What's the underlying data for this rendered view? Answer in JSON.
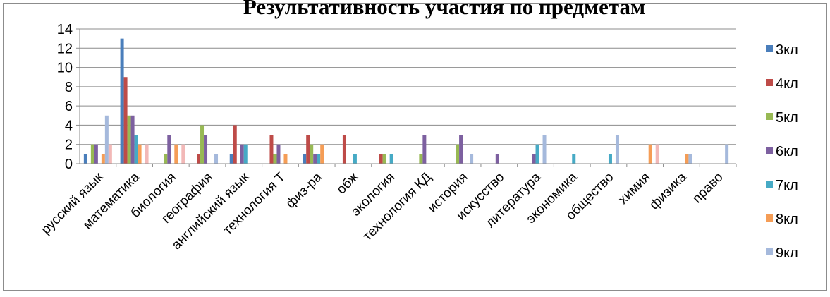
{
  "chart_data": {
    "type": "bar",
    "title": "Результативность участия по предметам",
    "xlabel": "",
    "ylabel": "",
    "ylim": [
      0,
      14
    ],
    "yticks": [
      0,
      2,
      4,
      6,
      8,
      10,
      12,
      14
    ],
    "grid": true,
    "legend_position": "right",
    "categories": [
      "русский язык",
      "математика",
      "биология",
      "география",
      "английский язык",
      "технология Т",
      "физ-ра",
      "обж",
      "экология",
      "технология КД",
      "история",
      "искусство",
      "литература",
      "экономика",
      "общество",
      "химия",
      "физика",
      "право"
    ],
    "series": [
      {
        "name": "3кл",
        "color": "#4a7ebb",
        "values": [
          1,
          13,
          0,
          0,
          1,
          0,
          1,
          0,
          0,
          0,
          0,
          0,
          0,
          0,
          0,
          0,
          0,
          0
        ]
      },
      {
        "name": "4кл",
        "color": "#be4b48",
        "values": [
          0,
          9,
          0,
          1,
          4,
          3,
          3,
          3,
          1,
          0,
          0,
          0,
          0,
          0,
          0,
          0,
          0,
          0
        ]
      },
      {
        "name": "5кл",
        "color": "#98b954",
        "values": [
          2,
          5,
          1,
          4,
          0,
          1,
          2,
          0,
          1,
          1,
          2,
          0,
          0,
          0,
          0,
          0,
          0,
          0
        ]
      },
      {
        "name": "6кл",
        "color": "#7d60a0",
        "values": [
          2,
          5,
          3,
          3,
          2,
          2,
          1,
          0,
          0,
          3,
          3,
          1,
          1,
          0,
          0,
          0,
          0,
          0
        ]
      },
      {
        "name": "7кл",
        "color": "#46aac5",
        "values": [
          0,
          3,
          0,
          0,
          2,
          0,
          1,
          1,
          1,
          0,
          0,
          0,
          2,
          1,
          1,
          0,
          0,
          0
        ]
      },
      {
        "name": "8кл",
        "color": "#f59d56",
        "values": [
          1,
          2,
          2,
          0,
          0,
          1,
          2,
          0,
          0,
          0,
          0,
          0,
          0,
          0,
          0,
          2,
          1,
          0
        ]
      },
      {
        "name": "9кл",
        "color": "#a5b9dc",
        "values": [
          5,
          0,
          0,
          1,
          0,
          0,
          0,
          0,
          0,
          0,
          1,
          0,
          3,
          0,
          3,
          0,
          1,
          2
        ]
      },
      {
        "name": "",
        "color": "#f2b8b7",
        "values": [
          2,
          2,
          2,
          0,
          0,
          0,
          0,
          0,
          0,
          0,
          0,
          0,
          0,
          0,
          0,
          2,
          0,
          0
        ]
      }
    ]
  }
}
